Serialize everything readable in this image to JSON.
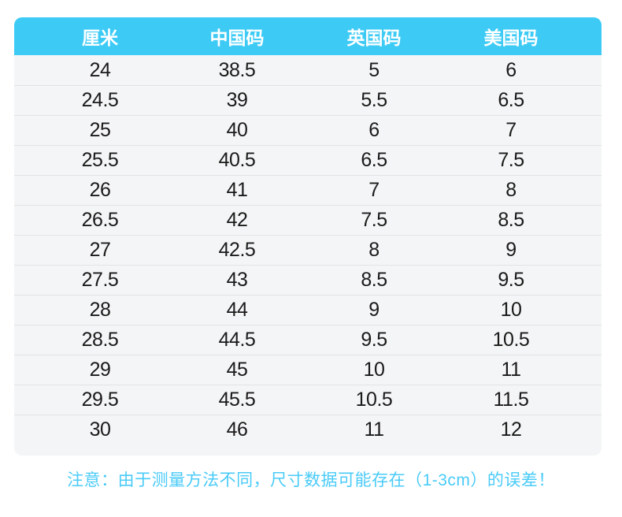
{
  "chart_data": {
    "type": "table",
    "title": "",
    "columns": [
      "厘米",
      "中国码",
      "英国码",
      "美国码"
    ],
    "rows": [
      [
        "24",
        "38.5",
        "5",
        "6"
      ],
      [
        "24.5",
        "39",
        "5.5",
        "6.5"
      ],
      [
        "25",
        "40",
        "6",
        "7"
      ],
      [
        "25.5",
        "40.5",
        "6.5",
        "7.5"
      ],
      [
        "26",
        "41",
        "7",
        "8"
      ],
      [
        "26.5",
        "42",
        "7.5",
        "8.5"
      ],
      [
        "27",
        "42.5",
        "8",
        "9"
      ],
      [
        "27.5",
        "43",
        "8.5",
        "9.5"
      ],
      [
        "28",
        "44",
        "9",
        "10"
      ],
      [
        "28.5",
        "44.5",
        "9.5",
        "10.5"
      ],
      [
        "29",
        "45",
        "10",
        "11"
      ],
      [
        "29.5",
        "45.5",
        "10.5",
        "11.5"
      ],
      [
        "30",
        "46",
        "11",
        "12"
      ]
    ]
  },
  "note": {
    "text": "注意：由于测量方法不同，尺寸数据可能存在（1-3cm）的误差！"
  },
  "colors": {
    "header_bg": "#3DCBF5",
    "header_text": "#FFFFFF",
    "row_bg": "#F4F5F6",
    "row_divider": "#E3E3E4",
    "cell_text": "#1A1A1A",
    "note_text": "#4ACBF8",
    "page_bg": "#FFFFFF"
  }
}
